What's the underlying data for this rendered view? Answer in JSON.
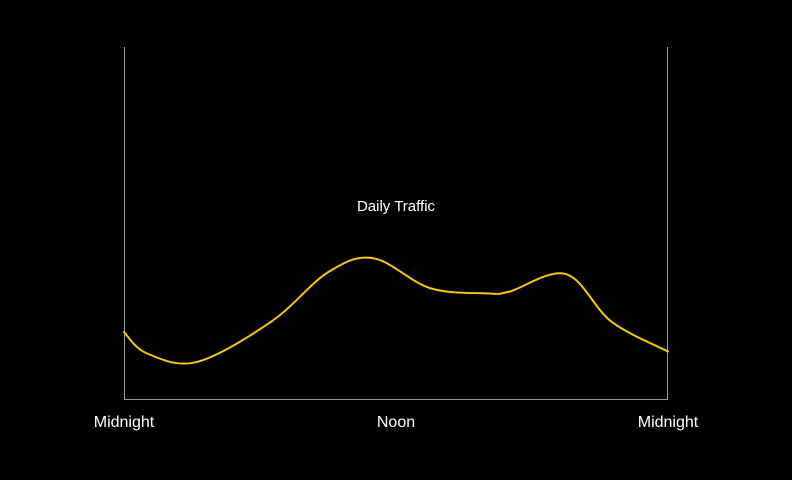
{
  "chart_data": {
    "type": "line",
    "title": "Daily Traffic",
    "xlabel": "",
    "ylabel": "",
    "x_ticks": [
      {
        "x": 0,
        "label": "Midnight"
      },
      {
        "x": 12,
        "label": "Noon"
      },
      {
        "x": 24,
        "label": "Midnight"
      }
    ],
    "xlim": [
      0,
      24
    ],
    "ylim": [
      0,
      100
    ],
    "grid": false,
    "legend": "none",
    "series": [
      {
        "color": "#f5c518",
        "x": [
          0,
          1,
          3.2,
          6.5,
          9,
          11,
          13.5,
          16,
          17,
          19.5,
          21.5,
          24
        ],
        "y": [
          19,
          13,
          10.5,
          22,
          36,
          40,
          31.5,
          30,
          30.5,
          35.5,
          22,
          13.5
        ]
      }
    ],
    "colors": {
      "background": "#000000",
      "axis": "#9a9a9a",
      "text": "#ffffff",
      "line": "#f5c518"
    }
  }
}
